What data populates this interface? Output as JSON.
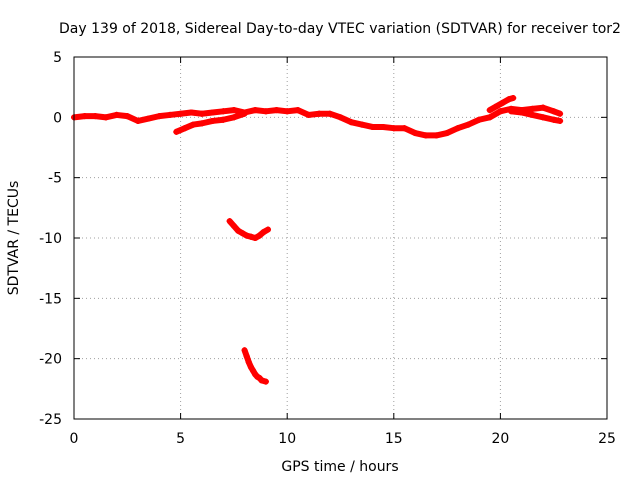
{
  "chart_data": {
    "type": "scatter",
    "title": "Day 139 of 2018, Sidereal Day-to-day VTEC variation (SDTVAR) for receiver tor2",
    "xlabel": "GPS time / hours",
    "ylabel": "SDTVAR / TECUs",
    "xlim": [
      0,
      25
    ],
    "ylim": [
      -25,
      5
    ],
    "xticks": [
      0,
      5,
      10,
      15,
      20,
      25
    ],
    "yticks": [
      5,
      0,
      -5,
      -10,
      -15,
      -20,
      -25
    ],
    "xtick_labels": [
      "0",
      "5",
      "10",
      "15",
      "20",
      "25"
    ],
    "ytick_labels": [
      "5",
      "0",
      "-5",
      "-10",
      "-15",
      "-20",
      "-25"
    ],
    "grid": true,
    "legend": "none",
    "marker": "+",
    "color": "#ff0000",
    "series": [
      {
        "name": "main-track",
        "x": [
          0.0,
          0.5,
          1.0,
          1.5,
          2.0,
          2.5,
          3.0,
          3.5,
          4.0,
          4.5,
          5.0,
          5.5,
          6.0,
          6.5,
          7.0,
          7.5,
          8.0,
          8.5,
          9.0,
          9.5,
          10.0,
          10.5,
          11.0,
          11.5,
          12.0,
          12.5,
          13.0,
          13.5,
          14.0,
          14.5,
          15.0,
          15.5,
          16.0,
          16.5,
          17.0,
          17.5,
          18.0,
          18.5,
          19.0,
          19.5,
          20.0,
          20.5,
          21.0,
          21.5,
          22.0,
          22.5,
          22.8
        ],
        "y": [
          0.0,
          0.1,
          0.1,
          0.0,
          0.2,
          0.1,
          -0.3,
          -0.1,
          0.1,
          0.2,
          0.3,
          0.4,
          0.3,
          0.4,
          0.5,
          0.6,
          0.4,
          0.6,
          0.5,
          0.6,
          0.5,
          0.6,
          0.2,
          0.3,
          0.3,
          0.0,
          -0.4,
          -0.6,
          -0.8,
          -0.8,
          -0.9,
          -0.9,
          -1.3,
          -1.5,
          -1.5,
          -1.3,
          -0.9,
          -0.6,
          -0.2,
          0.0,
          0.5,
          0.7,
          0.6,
          0.7,
          0.8,
          0.5,
          0.3
        ]
      },
      {
        "name": "lower-branch",
        "x": [
          4.8,
          5.2,
          5.6,
          6.0,
          6.5,
          7.0,
          7.5,
          8.0
        ],
        "y": [
          -1.2,
          -0.9,
          -0.6,
          -0.5,
          -0.3,
          -0.2,
          0.0,
          0.3
        ]
      },
      {
        "name": "upper-branch",
        "x": [
          19.5,
          19.8,
          20.1,
          20.4,
          20.6
        ],
        "y": [
          0.6,
          0.9,
          1.2,
          1.5,
          1.6
        ]
      },
      {
        "name": "late-branch",
        "x": [
          20.5,
          21.0,
          21.5,
          22.0,
          22.5,
          22.8
        ],
        "y": [
          0.5,
          0.4,
          0.2,
          0.0,
          -0.2,
          -0.3
        ]
      },
      {
        "name": "segment-near-minus-10",
        "x": [
          7.3,
          7.5,
          7.7,
          7.9,
          8.1,
          8.3,
          8.5,
          8.7,
          8.9,
          9.1
        ],
        "y": [
          -8.6,
          -9.0,
          -9.4,
          -9.6,
          -9.8,
          -9.9,
          -10.0,
          -9.8,
          -9.5,
          -9.3
        ]
      },
      {
        "name": "segment-near-minus-20",
        "x": [
          8.0,
          8.1,
          8.2,
          8.3,
          8.4,
          8.5,
          8.6,
          8.7,
          8.8,
          9.0
        ],
        "y": [
          -19.3,
          -19.8,
          -20.3,
          -20.7,
          -21.0,
          -21.3,
          -21.5,
          -21.6,
          -21.8,
          -21.9
        ]
      }
    ]
  }
}
